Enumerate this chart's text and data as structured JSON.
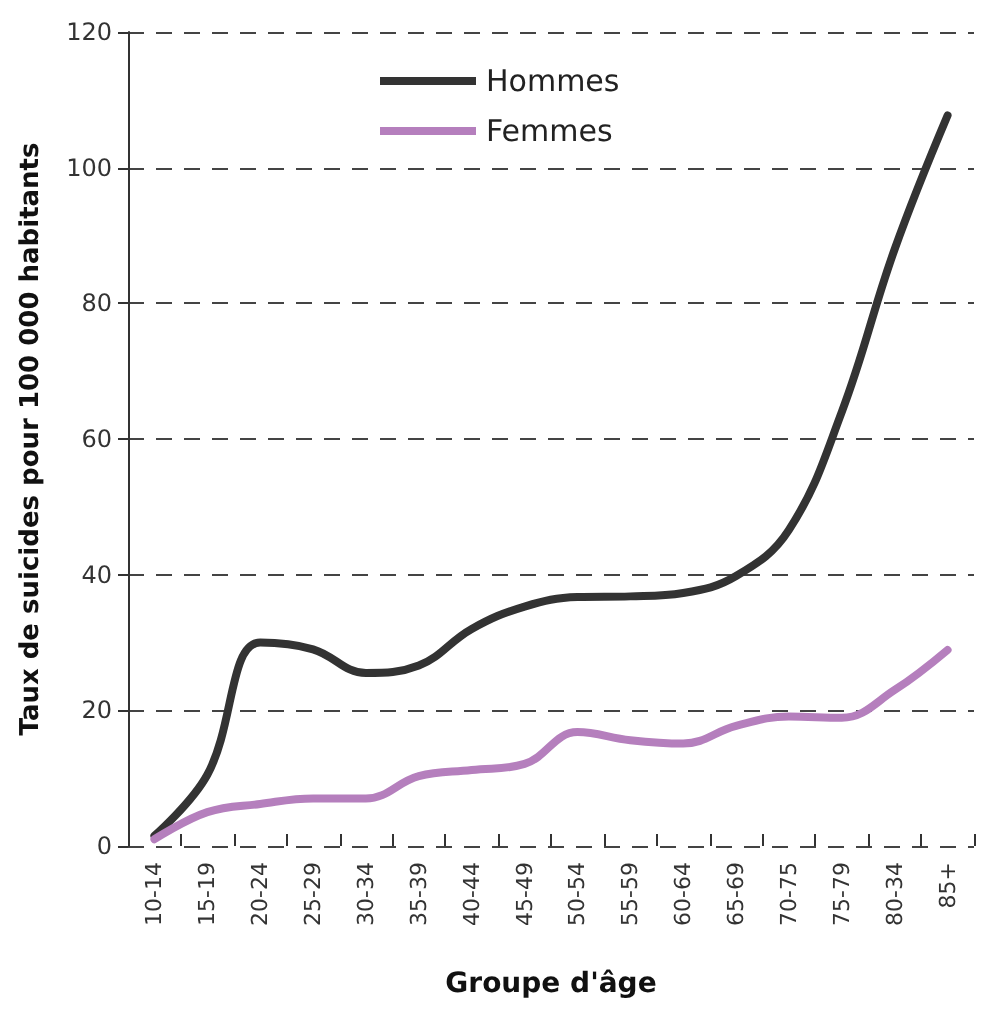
{
  "chart_data": {
    "type": "line",
    "xlabel": "Groupe d'âge",
    "ylabel": "Taux de suicides pour 100 000 habitants",
    "categories": [
      "10-14",
      "15-19",
      "20-24",
      "25-29",
      "30-34",
      "35-39",
      "40-44",
      "45-49",
      "50-54",
      "55-59",
      "60-64",
      "65-69",
      "70-75",
      "75-79",
      "80-34",
      "85+"
    ],
    "series": [
      {
        "name": "Hommes",
        "color": "#333333",
        "values": [
          1.5,
          10.5,
          30,
          29,
          25.5,
          26.6,
          32,
          35.3,
          36.7,
          36.8,
          37.3,
          39.8,
          46.6,
          64,
          88,
          107.7
        ]
      },
      {
        "name": "Femmes",
        "color": "#b57fbd",
        "values": [
          1,
          5,
          6.2,
          7,
          7,
          10.3,
          11.2,
          12.1,
          16.8,
          15.6,
          15.1,
          17.7,
          19.1,
          18.9,
          23,
          28.9
        ]
      }
    ],
    "ylim": [
      0,
      120
    ],
    "yticks": [
      0,
      20,
      40,
      60,
      80,
      100,
      120
    ],
    "grid": "y",
    "legend": "top left",
    "marker": "none",
    "line_style": "solid"
  }
}
